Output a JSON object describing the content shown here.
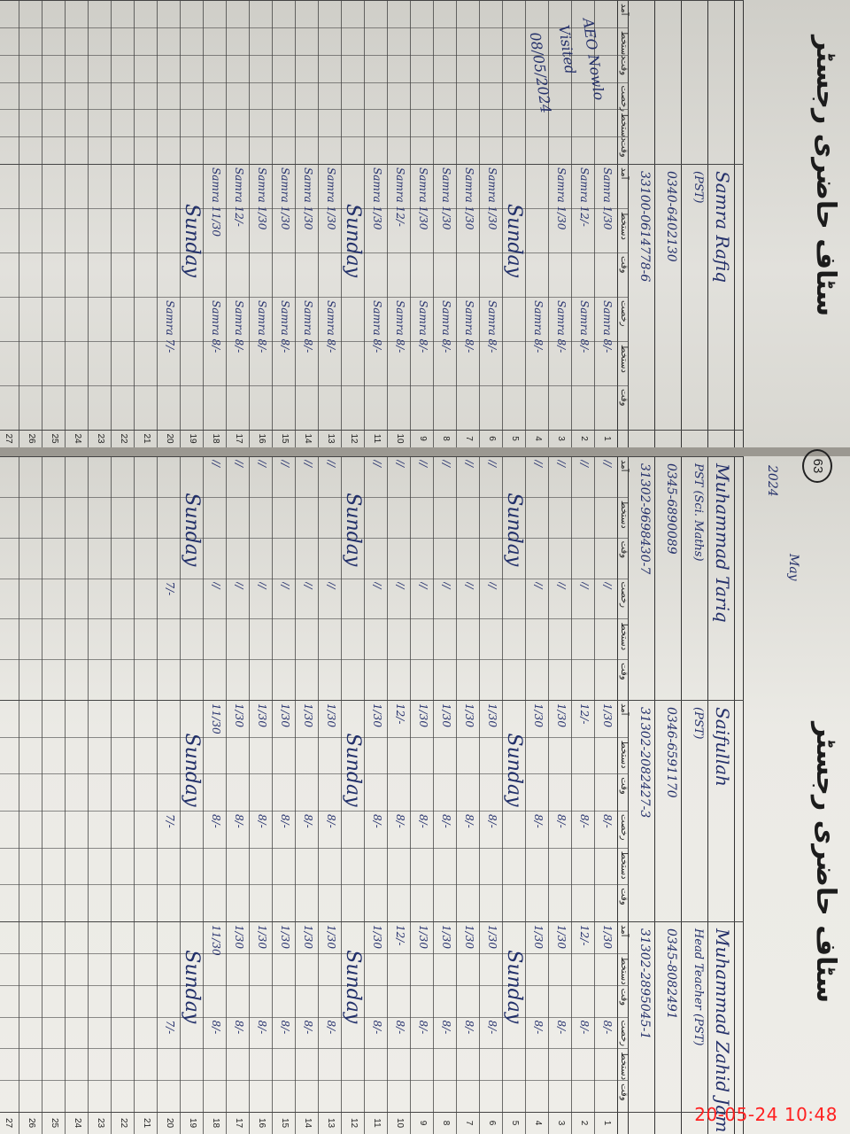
{
  "register": {
    "title": "سٹاف حاضری رجسٹر",
    "month": "May",
    "year": "2024",
    "page_number": "63",
    "column_headers": [
      "آمد",
      "دستخط",
      "وقت",
      "رخصت",
      "دستخط",
      "وقت"
    ]
  },
  "staff": [
    {
      "name": "",
      "designation": "",
      "phone": "",
      "cnic": "",
      "note": [
        "AEO Nowlo",
        "Visited",
        "08/05/2024"
      ],
      "entries": []
    },
    {
      "name": "Samra Rafiq",
      "designation": "(PST)",
      "phone": "0340-6402130",
      "cnic": "33100-0614778-6",
      "entries": [
        [
          "Samra 1/30",
          "Samra 8/-"
        ],
        [
          "Samra 12/-",
          "Samra 8/-"
        ],
        [
          "Samra 1/30",
          "Samra 8/-"
        ],
        [
          "",
          "Samra 8/-"
        ],
        [
          "Sunday",
          ""
        ],
        [
          "Samra 1/30",
          "Samra 8/-"
        ],
        [
          "Samra 1/30",
          "Samra 8/-"
        ],
        [
          "Samra 1/30",
          "Samra 8/-"
        ],
        [
          "Samra 1/30",
          "Samra 8/-"
        ],
        [
          "Samra 12/-",
          "Samra 8/-"
        ],
        [
          "Samra 1/30",
          "Samra 8/-"
        ],
        [
          "Sunday",
          ""
        ],
        [
          "Samra 1/30",
          "Samra 8/-"
        ],
        [
          "Samra 1/30",
          "Samra 8/-"
        ],
        [
          "Samra 1/30",
          "Samra 8/-"
        ],
        [
          "Samra 1/30",
          "Samra 8/-"
        ],
        [
          "Samra 12/-",
          "Samra 8/-"
        ],
        [
          "Samra 11/30",
          "Samra 8/-"
        ],
        [
          "Sunday",
          ""
        ],
        [
          "",
          "Samra 7/-"
        ]
      ]
    },
    {
      "name": "Muhammad Tariq",
      "designation": "PST (Sci. Maths)",
      "phone": "0345-6890089",
      "cnic": "31302-9698430-7",
      "entries": [
        [
          "//",
          "//"
        ],
        [
          "//",
          "//"
        ],
        [
          "//",
          "//"
        ],
        [
          "//",
          "//"
        ],
        [
          "Sunday",
          ""
        ],
        [
          "//",
          "//"
        ],
        [
          "//",
          "//"
        ],
        [
          "//",
          "//"
        ],
        [
          "//",
          "//"
        ],
        [
          "//",
          "//"
        ],
        [
          "//",
          "//"
        ],
        [
          "Sunday",
          ""
        ],
        [
          "//",
          "//"
        ],
        [
          "//",
          "//"
        ],
        [
          "//",
          "//"
        ],
        [
          "//",
          "//"
        ],
        [
          "//",
          "//"
        ],
        [
          "//",
          "//"
        ],
        [
          "Sunday",
          ""
        ],
        [
          "",
          "7/-"
        ]
      ]
    },
    {
      "name": "Saifullah",
      "designation": "(PST)",
      "phone": "0346-6591170",
      "cnic": "31302-2082427-3",
      "entries": [
        [
          "1/30",
          "8/-"
        ],
        [
          "12/-",
          "8/-"
        ],
        [
          "1/30",
          "8/-"
        ],
        [
          "1/30",
          "8/-"
        ],
        [
          "Sunday",
          ""
        ],
        [
          "1/30",
          "8/-"
        ],
        [
          "1/30",
          "8/-"
        ],
        [
          "1/30",
          "8/-"
        ],
        [
          "1/30",
          "8/-"
        ],
        [
          "12/-",
          "8/-"
        ],
        [
          "1/30",
          "8/-"
        ],
        [
          "Sunday",
          ""
        ],
        [
          "1/30",
          "8/-"
        ],
        [
          "1/30",
          "8/-"
        ],
        [
          "1/30",
          "8/-"
        ],
        [
          "1/30",
          "8/-"
        ],
        [
          "1/30",
          "8/-"
        ],
        [
          "11/30",
          "8/-"
        ],
        [
          "Sunday",
          ""
        ],
        [
          "",
          "7/-"
        ]
      ]
    },
    {
      "name": "Muhammad Zahid Jam",
      "designation": "Head Teacher (PST)",
      "phone": "0345-8082491",
      "cnic": "31302-2895045-1",
      "entries": [
        [
          "1/30",
          "8/-"
        ],
        [
          "12/-",
          "8/-"
        ],
        [
          "1/30",
          "8/-"
        ],
        [
          "1/30",
          "8/-"
        ],
        [
          "Sunday",
          ""
        ],
        [
          "1/30",
          "8/-"
        ],
        [
          "1/30",
          "8/-"
        ],
        [
          "1/30",
          "8/-"
        ],
        [
          "1/30",
          "8/-"
        ],
        [
          "12/-",
          "8/-"
        ],
        [
          "1/30",
          "8/-"
        ],
        [
          "Sunday",
          ""
        ],
        [
          "1/30",
          "8/-"
        ],
        [
          "1/30",
          "8/-"
        ],
        [
          "1/30",
          "8/-"
        ],
        [
          "1/30",
          "8/-"
        ],
        [
          "1/30",
          "8/-"
        ],
        [
          "11/30",
          "8/-"
        ],
        [
          "Sunday",
          ""
        ],
        [
          "",
          "7/-"
        ]
      ]
    }
  ],
  "days": [
    1,
    2,
    3,
    4,
    5,
    6,
    7,
    8,
    9,
    10,
    11,
    12,
    13,
    14,
    15,
    16,
    17,
    18,
    19,
    20,
    21,
    22,
    23,
    24,
    25,
    26,
    27
  ],
  "camera_timestamp": "20-05-24 10:48",
  "colors": {
    "ink": "#24306a",
    "paper": "#e8e7e2",
    "timestamp": "#ff2020"
  }
}
